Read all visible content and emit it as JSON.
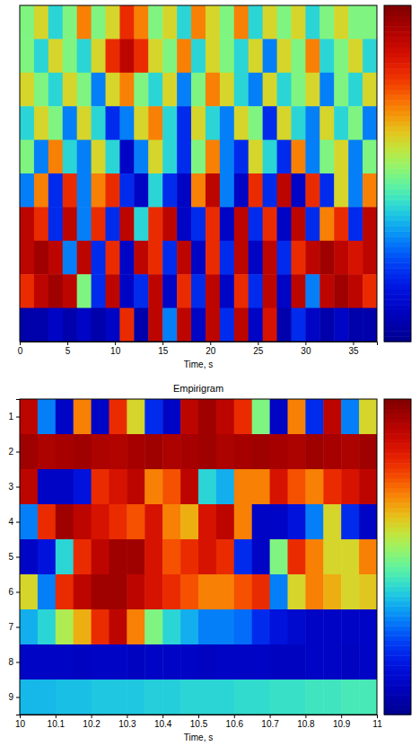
{
  "chart_data": [
    {
      "type": "heatmap",
      "xlabel": "Time, s",
      "xlim": [
        0,
        37.5
      ],
      "xticks": [
        0,
        5,
        10,
        15,
        20,
        25,
        30,
        35
      ],
      "tick_labels": "x",
      "colorbar_range": [
        0,
        1
      ],
      "x": [
        0.75,
        2.25,
        3.75,
        5.25,
        6.75,
        8.25,
        9.75,
        11.25,
        12.75,
        14.25,
        15.75,
        17.25,
        18.75,
        20.25,
        21.75,
        23.25,
        24.75,
        26.25,
        27.75,
        29.25,
        30.75,
        32.25,
        33.75,
        35.25,
        36.75
      ],
      "values": [
        [
          0.5,
          0.6,
          0.4,
          0.5,
          0.7,
          0.5,
          0.6,
          0.8,
          0.7,
          0.5,
          0.6,
          0.4,
          0.7,
          0.6,
          0.5,
          0.7,
          0.4,
          0.6,
          0.5,
          0.6,
          0.4,
          0.5,
          0.6,
          0.5,
          0.5
        ],
        [
          0.5,
          0.4,
          0.6,
          0.5,
          0.4,
          0.6,
          0.8,
          0.9,
          0.8,
          0.6,
          0.5,
          0.7,
          0.4,
          0.6,
          0.5,
          0.4,
          0.6,
          0.3,
          0.6,
          0.5,
          0.7,
          0.4,
          0.5,
          0.6,
          0.4
        ],
        [
          0.6,
          0.5,
          0.4,
          0.6,
          0.5,
          0.3,
          0.6,
          0.7,
          0.5,
          0.4,
          0.6,
          0.3,
          0.5,
          0.7,
          0.6,
          0.4,
          0.3,
          0.6,
          0.4,
          0.5,
          0.6,
          0.3,
          0.5,
          0.4,
          0.6
        ],
        [
          0.4,
          0.6,
          0.5,
          0.3,
          0.6,
          0.4,
          0.2,
          0.3,
          0.6,
          0.7,
          0.4,
          0.2,
          0.6,
          0.4,
          0.3,
          0.6,
          0.5,
          0.2,
          0.6,
          0.4,
          0.3,
          0.6,
          0.4,
          0.5,
          0.3
        ],
        [
          0.5,
          0.3,
          0.7,
          0.4,
          0.3,
          0.6,
          0.4,
          0.1,
          0.3,
          0.6,
          0.4,
          0.2,
          0.5,
          0.7,
          0.3,
          0.2,
          0.6,
          0.4,
          0.2,
          0.7,
          0.3,
          0.5,
          0.6,
          0.3,
          0.5
        ],
        [
          0.3,
          0.7,
          0.2,
          0.8,
          0.3,
          0.7,
          0.8,
          0.2,
          0.1,
          0.4,
          0.2,
          0.1,
          0.7,
          0.9,
          0.3,
          0.1,
          0.8,
          0.2,
          0.9,
          0.1,
          0.8,
          0.2,
          0.6,
          0.3,
          0.7
        ],
        [
          0.9,
          0.8,
          0.2,
          0.9,
          0.3,
          0.8,
          0.2,
          0.9,
          0.4,
          0.8,
          0.9,
          0.1,
          0.2,
          0.8,
          0.1,
          0.9,
          0.2,
          0.8,
          0.1,
          0.9,
          0.2,
          0.7,
          0.8,
          0.2,
          0.9
        ],
        [
          0.9,
          0.95,
          0.9,
          0.3,
          0.9,
          0.2,
          0.8,
          0.1,
          0.9,
          0.8,
          0.2,
          0.9,
          0.1,
          0.8,
          0.2,
          0.9,
          0.1,
          0.9,
          0.2,
          0.8,
          0.9,
          0.95,
          0.9,
          0.85,
          0.9
        ],
        [
          0.8,
          0.9,
          0.95,
          0.9,
          0.5,
          0.2,
          0.9,
          0.1,
          0.2,
          0.9,
          0.1,
          0.8,
          0.2,
          0.9,
          0.1,
          0.8,
          0.2,
          0.9,
          0.1,
          0.9,
          0.3,
          0.9,
          0.95,
          0.9,
          0.8
        ],
        [
          0.05,
          0.05,
          0.1,
          0.05,
          0.1,
          0.05,
          0.1,
          0.8,
          0.05,
          0.9,
          0.3,
          0.9,
          0.1,
          0.9,
          0.2,
          0.9,
          0.1,
          0.85,
          0.05,
          0.2,
          0.1,
          0.05,
          0.1,
          0.05,
          0.05
        ]
      ]
    },
    {
      "type": "heatmap",
      "title": "Empirigram",
      "xlabel": "Time, s",
      "xlim": [
        10,
        11
      ],
      "xticks": [
        10,
        10.1,
        10.2,
        10.3,
        10.4,
        10.5,
        10.6,
        10.7,
        10.8,
        10.9,
        11
      ],
      "ylim": [
        0.5,
        9.5
      ],
      "yticks": [
        1,
        2,
        3,
        4,
        5,
        6,
        7,
        8,
        9
      ],
      "colorbar_range": [
        0,
        1
      ],
      "x": [
        10.025,
        10.075,
        10.125,
        10.175,
        10.225,
        10.275,
        10.325,
        10.375,
        10.425,
        10.475,
        10.525,
        10.575,
        10.625,
        10.675,
        10.725,
        10.775,
        10.825,
        10.875,
        10.925,
        10.975
      ],
      "y": [
        1,
        2,
        3,
        4,
        5,
        6,
        7,
        8,
        9
      ],
      "values": [
        [
          0.9,
          0.3,
          0.1,
          0.7,
          0.1,
          0.8,
          0.6,
          0.2,
          0.1,
          0.9,
          0.95,
          0.9,
          0.8,
          0.5,
          0.1,
          0.7,
          0.2,
          0.9,
          0.3,
          0.6
        ],
        [
          0.95,
          0.93,
          0.94,
          0.95,
          0.93,
          0.92,
          0.94,
          0.95,
          0.93,
          0.94,
          0.95,
          0.93,
          0.94,
          0.95,
          0.94,
          0.93,
          0.95,
          0.94,
          0.93,
          0.95
        ],
        [
          0.9,
          0.1,
          0.1,
          0.15,
          0.8,
          0.85,
          0.9,
          0.7,
          0.75,
          0.9,
          0.4,
          0.35,
          0.7,
          0.7,
          0.85,
          0.75,
          0.7,
          0.8,
          0.85,
          0.9
        ],
        [
          0.3,
          0.8,
          0.95,
          0.9,
          0.85,
          0.8,
          0.75,
          0.85,
          0.7,
          0.65,
          0.85,
          0.9,
          0.7,
          0.1,
          0.1,
          0.15,
          0.3,
          0.6,
          0.2,
          0.1
        ],
        [
          0.1,
          0.15,
          0.4,
          0.8,
          0.9,
          0.95,
          0.95,
          0.85,
          0.75,
          0.8,
          0.85,
          0.8,
          0.2,
          0.1,
          0.5,
          0.8,
          0.7,
          0.6,
          0.6,
          0.7
        ],
        [
          0.6,
          0.3,
          0.8,
          0.9,
          0.95,
          0.95,
          0.9,
          0.85,
          0.8,
          0.75,
          0.7,
          0.7,
          0.75,
          0.8,
          0.3,
          0.6,
          0.7,
          0.65,
          0.6,
          0.62
        ],
        [
          0.35,
          0.4,
          0.55,
          0.65,
          0.8,
          0.9,
          0.7,
          0.5,
          0.4,
          0.35,
          0.3,
          0.3,
          0.28,
          0.2,
          0.15,
          0.12,
          0.1,
          0.1,
          0.1,
          0.1
        ],
        [
          0.1,
          0.1,
          0.1,
          0.09,
          0.1,
          0.1,
          0.09,
          0.1,
          0.1,
          0.1,
          0.09,
          0.1,
          0.1,
          0.1,
          0.09,
          0.09,
          0.1,
          0.1,
          0.09,
          0.1
        ],
        [
          0.36,
          0.36,
          0.37,
          0.37,
          0.38,
          0.38,
          0.38,
          0.39,
          0.39,
          0.4,
          0.4,
          0.4,
          0.41,
          0.41,
          0.42,
          0.42,
          0.43,
          0.43,
          0.44,
          0.44
        ]
      ]
    }
  ]
}
